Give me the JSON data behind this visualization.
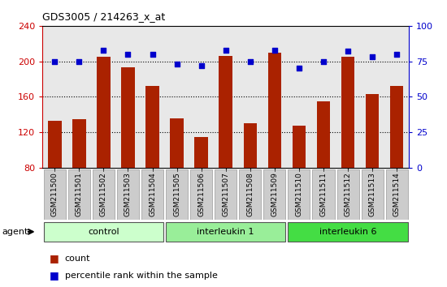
{
  "title": "GDS3005 / 214263_x_at",
  "samples": [
    "GSM211500",
    "GSM211501",
    "GSM211502",
    "GSM211503",
    "GSM211504",
    "GSM211505",
    "GSM211506",
    "GSM211507",
    "GSM211508",
    "GSM211509",
    "GSM211510",
    "GSM211511",
    "GSM211512",
    "GSM211513",
    "GSM211514"
  ],
  "counts": [
    133,
    135,
    205,
    193,
    172,
    136,
    115,
    206,
    130,
    210,
    128,
    155,
    205,
    163,
    172
  ],
  "percentile_ranks": [
    75,
    75,
    83,
    80,
    80,
    73,
    72,
    83,
    75,
    83,
    70,
    75,
    82,
    78,
    80
  ],
  "groups": [
    {
      "label": "control",
      "start": 0,
      "end": 5,
      "color": "#ccffcc"
    },
    {
      "label": "interleukin 1",
      "start": 5,
      "end": 10,
      "color": "#99ee99"
    },
    {
      "label": "interleukin 6",
      "start": 10,
      "end": 15,
      "color": "#44dd44"
    }
  ],
  "bar_color": "#aa2200",
  "dot_color": "#0000cc",
  "ylim_left": [
    80,
    240
  ],
  "ylim_right": [
    0,
    100
  ],
  "yticks_left": [
    80,
    120,
    160,
    200,
    240
  ],
  "yticks_right": [
    0,
    25,
    50,
    75,
    100
  ],
  "grid_values": [
    120,
    160,
    200
  ],
  "plot_bg_color": "#e8e8e8",
  "sample_box_color": "#cccccc",
  "title_color": "#000000",
  "left_axis_color": "#cc0000",
  "right_axis_color": "#0000cc"
}
